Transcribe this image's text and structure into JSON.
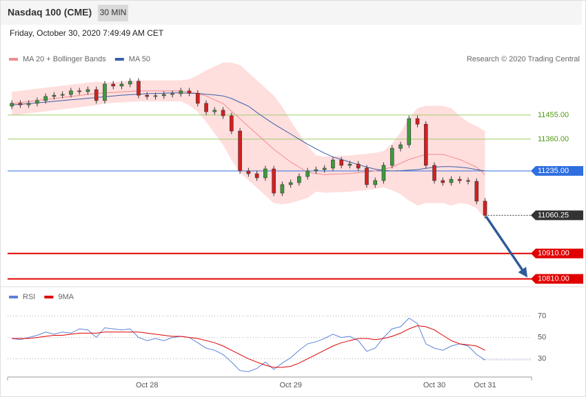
{
  "header": {
    "title": "Nasdaq 100 (CME)",
    "timeframe": "30 MIN",
    "date": "Friday, October 30, 2020 7:49:49 AM CET"
  },
  "chart_data": [
    {
      "type": "candlestick",
      "source": "Research © 2020 Trading Central",
      "up_color": "#3d9b3d",
      "down_color": "#d42020",
      "ylim": [
        10790,
        11745
      ],
      "categories": [
        null,
        null,
        null,
        null,
        null,
        null,
        null,
        null,
        null,
        null,
        null,
        null,
        null,
        null,
        null,
        null,
        "Oct 28",
        null,
        null,
        null,
        null,
        null,
        null,
        null,
        null,
        null,
        null,
        null,
        null,
        null,
        null,
        null,
        null,
        "Oct 29",
        null,
        null,
        null,
        null,
        null,
        null,
        null,
        null,
        null,
        null,
        null,
        null,
        null,
        null,
        null,
        null,
        "Oct 30",
        null,
        null,
        null,
        null,
        null,
        "Oct 31",
        null,
        null,
        null,
        null,
        null
      ],
      "open": [
        11490,
        11501,
        11495,
        11501,
        11512,
        11528,
        11533,
        11536,
        11550,
        11547,
        11555,
        11512,
        11577,
        11569,
        11577,
        11588,
        11533,
        11528,
        11531,
        11536,
        11539,
        11550,
        11541,
        11501,
        11468,
        11474,
        11452,
        11392,
        11235,
        11224,
        11208,
        11243,
        11148,
        11181,
        11189,
        11213,
        11235,
        11240,
        11246,
        11278,
        11257,
        11262,
        11246,
        11181,
        11197,
        11257,
        11324,
        11338,
        11441,
        11419,
        11257,
        11197,
        11189,
        11202,
        11197,
        11194,
        11116,
        null,
        null,
        null,
        null,
        null
      ],
      "high": [
        11513,
        11513,
        11513,
        11524,
        11540,
        11545,
        11548,
        11562,
        11562,
        11567,
        11567,
        11589,
        11589,
        11589,
        11600,
        11600,
        11545,
        11543,
        11548,
        11551,
        11562,
        11562,
        11553,
        11513,
        11486,
        11486,
        11464,
        11404,
        11247,
        11236,
        11255,
        11255,
        11193,
        11201,
        11225,
        11247,
        11252,
        11258,
        11290,
        11290,
        11274,
        11274,
        11258,
        11209,
        11269,
        11336,
        11350,
        11453,
        11453,
        11431,
        11269,
        11209,
        11214,
        11214,
        11209,
        11206,
        11128,
        null,
        null,
        null,
        null,
        null
      ],
      "low": [
        11478,
        11483,
        11483,
        11489,
        11500,
        11516,
        11521,
        11524,
        11535,
        11535,
        11500,
        11500,
        11557,
        11557,
        11565,
        11521,
        11516,
        11516,
        11519,
        11524,
        11527,
        11529,
        11489,
        11456,
        11456,
        11440,
        11380,
        11223,
        11212,
        11196,
        11196,
        11136,
        11136,
        11169,
        11177,
        11201,
        11223,
        11228,
        11234,
        11245,
        11245,
        11234,
        11169,
        11169,
        11185,
        11245,
        11312,
        11326,
        11407,
        11245,
        11185,
        11177,
        11177,
        11185,
        11182,
        11104,
        11048,
        null,
        null,
        null,
        null,
        null
      ],
      "close": [
        11501,
        11495,
        11501,
        11512,
        11528,
        11533,
        11536,
        11550,
        11547,
        11555,
        11512,
        11577,
        11569,
        11577,
        11588,
        11533,
        11528,
        11531,
        11536,
        11539,
        11550,
        11541,
        11501,
        11468,
        11474,
        11452,
        11392,
        11235,
        11224,
        11208,
        11243,
        11148,
        11181,
        11189,
        11213,
        11235,
        11240,
        11246,
        11278,
        11257,
        11262,
        11246,
        11181,
        11197,
        11257,
        11324,
        11338,
        11441,
        11419,
        11257,
        11197,
        11189,
        11202,
        11197,
        11194,
        11116,
        11060.25,
        null,
        null,
        null,
        null,
        null
      ],
      "series": [
        {
          "name": "MA 20 + Bollinger Bands",
          "color": "#f28b8b",
          "band_color": "#ffdede",
          "values": [
            11500,
            11504,
            11508,
            11512,
            11516,
            11520,
            11524,
            11528,
            11532,
            11536,
            11540,
            11542,
            11544,
            11546,
            11548,
            11550,
            11550,
            11550,
            11550,
            11550,
            11550,
            11545,
            11540,
            11530,
            11515,
            11500,
            11470,
            11440,
            11410,
            11380,
            11350,
            11320,
            11295,
            11270,
            11250,
            11230,
            11225,
            11220,
            11222,
            11223,
            11225,
            11228,
            11231,
            11235,
            11242,
            11250,
            11265,
            11280,
            11290,
            11300,
            11300,
            11300,
            11290,
            11280,
            11265,
            11250,
            11220,
            null,
            null,
            null,
            null,
            null
          ],
          "upper": [
            11545,
            11549,
            11553,
            11557,
            11561,
            11565,
            11569,
            11573,
            11577,
            11581,
            11585,
            11582,
            11584,
            11586,
            11588,
            11590,
            11590,
            11590,
            11590,
            11590,
            11590,
            11595,
            11610,
            11630,
            11645,
            11660,
            11660,
            11650,
            11620,
            11590,
            11560,
            11530,
            11485,
            11430,
            11380,
            11330,
            11295,
            11290,
            11292,
            11293,
            11295,
            11298,
            11301,
            11305,
            11312,
            11340,
            11385,
            11440,
            11480,
            11490,
            11490,
            11490,
            11480,
            11450,
            11425,
            11410,
            11390,
            null,
            null,
            null,
            null,
            null
          ],
          "lower": [
            11455,
            11459,
            11463,
            11467,
            11471,
            11475,
            11479,
            11483,
            11487,
            11491,
            11495,
            11502,
            11504,
            11506,
            11508,
            11510,
            11510,
            11510,
            11510,
            11510,
            11510,
            11495,
            11470,
            11430,
            11385,
            11340,
            11280,
            11230,
            11200,
            11170,
            11140,
            11110,
            11105,
            11110,
            11120,
            11130,
            11155,
            11150,
            11152,
            11153,
            11155,
            11158,
            11161,
            11165,
            11172,
            11160,
            11145,
            11120,
            11100,
            11110,
            11110,
            11110,
            11100,
            11110,
            11105,
            11090,
            11050,
            null,
            null,
            null,
            null,
            null
          ]
        },
        {
          "name": "MA 50",
          "color": "#3a5ea8",
          "values": [
            11495,
            11497,
            11500,
            11503,
            11506,
            11509,
            11512,
            11515,
            11518,
            11521,
            11524,
            11527,
            11530,
            11533,
            11535,
            11537,
            11539,
            11540,
            11541,
            11542,
            11542,
            11541,
            11540,
            11537,
            11534,
            11530,
            11520,
            11505,
            11490,
            11465,
            11442,
            11420,
            11400,
            11380,
            11360,
            11340,
            11322,
            11305,
            11290,
            11280,
            11270,
            11260,
            11250,
            11242,
            11237,
            11235,
            11236,
            11238,
            11240,
            11245,
            11250,
            11252,
            11252,
            11250,
            11246,
            11240,
            11235,
            null,
            null,
            null,
            null,
            null
          ]
        }
      ],
      "levels": [
        {
          "value": 11455,
          "label": "11455.00",
          "color": "#9ccc65",
          "text_color": "#4a9a10",
          "boxed": false,
          "line_style": "solid"
        },
        {
          "value": 11360,
          "label": "11360.00",
          "color": "#9ccc65",
          "text_color": "#4a9a10",
          "boxed": false,
          "line_style": "solid"
        },
        {
          "value": 11235,
          "label": "11235.00",
          "color": "#2f6fe0",
          "text_color": "#ffffff",
          "boxed": true,
          "line_style": "solid"
        },
        {
          "value": 11060.25,
          "label": "11060.25",
          "color": "#333333",
          "text_color": "#ffffff",
          "boxed": true,
          "line_style": "dotted"
        },
        {
          "value": 10910,
          "label": "10910.00",
          "color": "#e00000",
          "text_color": "#ffffff",
          "boxed": true,
          "line_style": "bold"
        },
        {
          "value": 10810,
          "label": "10810.00",
          "color": "#e00000",
          "text_color": "#ffffff",
          "boxed": true,
          "line_style": "bold"
        }
      ]
    },
    {
      "type": "line",
      "ylim": [
        13,
        80
      ],
      "yticks": [
        30,
        50,
        70
      ],
      "grid": true,
      "series": [
        {
          "name": "RSI",
          "color": "#5b82d8",
          "values": [
            49,
            48,
            50,
            52,
            55,
            53,
            55,
            54,
            58,
            57,
            50,
            59,
            58,
            57,
            58,
            50,
            47,
            49,
            47,
            50,
            51,
            50,
            45,
            40,
            38,
            34,
            27,
            19,
            18,
            21,
            27,
            20,
            26,
            31,
            38,
            44,
            46,
            49,
            53,
            50,
            51,
            47,
            37,
            40,
            50,
            58,
            60,
            68,
            63,
            44,
            40,
            38,
            42,
            44,
            42,
            34,
            29,
            null,
            null,
            null,
            null,
            null
          ]
        },
        {
          "name": "9MA",
          "color": "#e00000",
          "values": [
            49,
            49,
            49,
            50,
            51,
            52,
            52,
            53,
            54,
            54,
            54,
            55,
            55,
            55,
            55,
            55,
            54,
            53,
            52,
            51,
            51,
            50,
            49,
            47,
            45,
            42,
            38,
            34,
            30,
            27,
            24,
            22,
            22,
            23,
            26,
            30,
            34,
            38,
            42,
            45,
            47,
            49,
            49,
            48,
            49,
            51,
            54,
            58,
            61,
            60,
            57,
            52,
            47,
            44,
            43,
            42,
            38,
            null,
            null,
            null,
            null,
            null
          ]
        }
      ]
    }
  ]
}
